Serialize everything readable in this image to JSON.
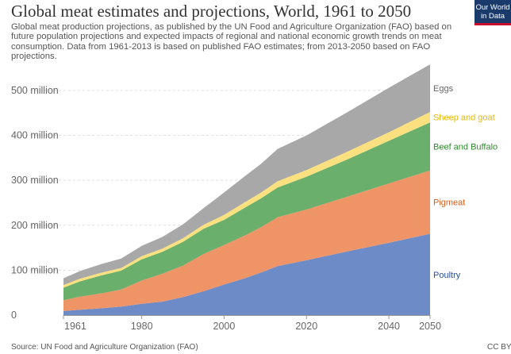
{
  "header": {
    "title": "Global meat estimates and projections, World, 1961 to 2050",
    "subtitle": "Global meat production projections, as published by the UN Food and Agriculture Organization (FAO) based on future population projections and expected impacts of regional and national economic growth trends on meat consumption. Data from 1961-2013 is based on published FAO estimates; from 2013-2050 based on FAO projections."
  },
  "logo": {
    "line1": "Our World",
    "line2": "in Data",
    "bg_color": "#1a3a6b",
    "bar_color": "#c8102e"
  },
  "footer": {
    "source": "Source: UN Food and Agriculture Organization (FAO)",
    "license": "CC BY"
  },
  "chart_data": {
    "type": "area",
    "stacked": true,
    "x": [
      1961,
      1965,
      1970,
      1975,
      1980,
      1985,
      1990,
      1995,
      2000,
      2005,
      2009,
      2013,
      2020,
      2030,
      2040,
      2050
    ],
    "series": [
      {
        "name": "Poultry",
        "color": "#6d8bc7",
        "label_color": "#2b4d9c",
        "values": [
          9,
          12,
          15,
          19,
          25,
          30,
          40,
          53,
          68,
          82,
          95,
          109,
          122,
          142,
          161,
          181
        ]
      },
      {
        "name": "Pigmeat",
        "color": "#ef9466",
        "label_color": "#d35d1d",
        "values": [
          24,
          29,
          33,
          38,
          52,
          62,
          70,
          83,
          88,
          95,
          101,
          109,
          113,
          122,
          132,
          141
        ]
      },
      {
        "name": "Beef and Buffalo",
        "color": "#6ab06c",
        "label_color": "#2e8b2e",
        "values": [
          28,
          34,
          40,
          42,
          47,
          49,
          53,
          56,
          56,
          62,
          64,
          66,
          73,
          83,
          95,
          107
        ]
      },
      {
        "name": "Sheep and goat",
        "color": "#fae07e",
        "label_color": "#e8b800",
        "values": [
          6,
          6,
          6,
          6,
          7,
          7,
          8,
          9,
          11,
          12,
          13,
          14,
          15,
          17,
          19,
          23
        ]
      },
      {
        "name": "Eggs",
        "color": "#a8a8a8",
        "label_color": "#666666",
        "values": [
          15,
          17,
          19,
          21,
          23,
          26,
          31,
          37,
          50,
          58,
          64,
          72,
          77,
          88,
          99,
          106
        ]
      }
    ],
    "xticks": [
      "1961",
      "1980",
      "2000",
      "2020",
      "2040",
      "2050"
    ],
    "xtick_values": [
      1961,
      1980,
      2000,
      2020,
      2040,
      2050
    ],
    "yticks": [
      "0",
      "100 million",
      "200 million",
      "300 million",
      "400 million",
      "500 million"
    ],
    "ytick_values": [
      0,
      100,
      200,
      300,
      400,
      500
    ],
    "xlim": [
      1961,
      2050
    ],
    "ylim": [
      0,
      560
    ],
    "grid": true,
    "legend": "right-inline"
  }
}
